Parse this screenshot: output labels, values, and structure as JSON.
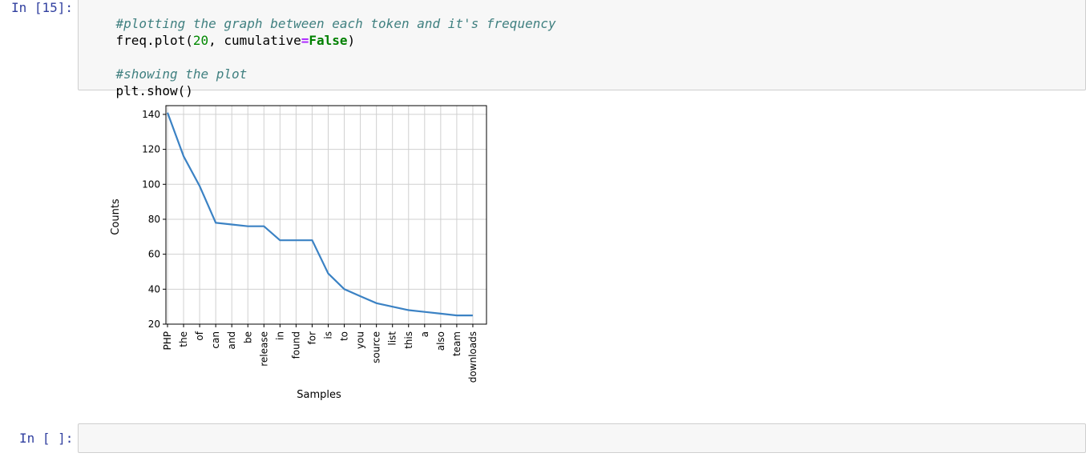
{
  "cells": [
    {
      "prompt": "In [15]:",
      "code": {
        "line1_comment": "#plotting the graph between each token and it's frequency",
        "line2_obj": "freq.plot(",
        "line2_num": "20",
        "line2_sep": ", cumulative",
        "line2_op": "=",
        "line2_kw": "False",
        "line2_close": ")",
        "line3_comment": "#showing the plot",
        "line4": "plt.show()"
      }
    },
    {
      "prompt": "In [ ]:",
      "code": ""
    }
  ],
  "chart_data": {
    "type": "line",
    "title": "",
    "xlabel": "Samples",
    "ylabel": "Counts",
    "categories": [
      "PHP",
      "the",
      "of",
      "can",
      "and",
      "be",
      "release",
      "in",
      "found",
      "for",
      "is",
      "to",
      "you",
      "source",
      "list",
      "this",
      "a",
      "also",
      "team",
      "downloads"
    ],
    "values": [
      141,
      116,
      99,
      78,
      77,
      76,
      76,
      68,
      68,
      68,
      49,
      40,
      36,
      32,
      30,
      28,
      27,
      26,
      25,
      25
    ],
    "ylim": [
      20,
      145
    ],
    "yticks": [
      20,
      40,
      60,
      80,
      100,
      120,
      140
    ],
    "ytick_labels": [
      "20",
      "40",
      "60",
      "80",
      "100",
      "120",
      "140"
    ],
    "grid": true,
    "line_color": "#3b82c4"
  }
}
